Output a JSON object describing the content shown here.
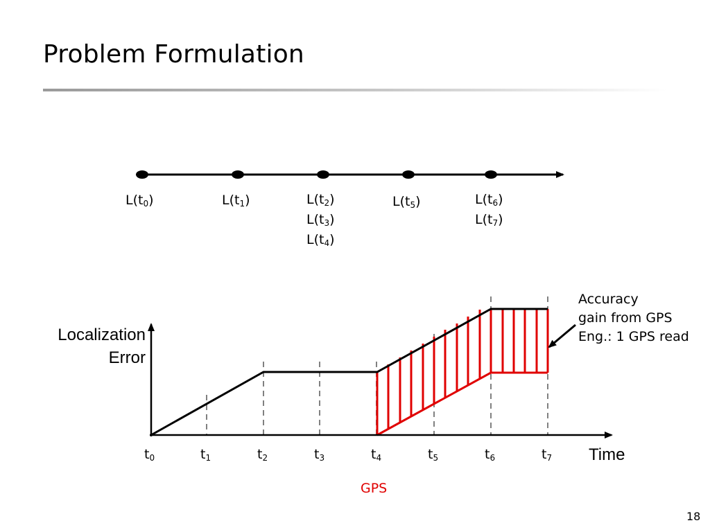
{
  "slide": {
    "title": "Problem Formulation",
    "page_number": "18"
  },
  "timeline": {
    "groups": [
      {
        "labels": [
          {
            "base": "L(t",
            "sub": "0",
            "close": ")"
          }
        ]
      },
      {
        "labels": [
          {
            "base": "L(t",
            "sub": "1",
            "close": ")"
          }
        ]
      },
      {
        "labels": [
          {
            "base": "L(t",
            "sub": "2",
            "close": ")"
          },
          {
            "base": "L(t",
            "sub": "3",
            "close": ")"
          },
          {
            "base": "L(t",
            "sub": "4",
            "close": ")"
          }
        ]
      },
      {
        "labels": [
          {
            "base": "L(t",
            "sub": "5",
            "close": ")"
          }
        ]
      },
      {
        "labels": [
          {
            "base": "L(t",
            "sub": "6",
            "close": ")"
          },
          {
            "base": "L(t",
            "sub": "7",
            "close": ")"
          }
        ]
      }
    ]
  },
  "plot": {
    "y_axis_title_line1": "Localization",
    "y_axis_title_line2": "Error",
    "x_axis_title": "Time",
    "ticks": [
      {
        "base": "t",
        "sub": "0"
      },
      {
        "base": "t",
        "sub": "1"
      },
      {
        "base": "t",
        "sub": "2"
      },
      {
        "base": "t",
        "sub": "3"
      },
      {
        "base": "t",
        "sub": "4"
      },
      {
        "base": "t",
        "sub": "5"
      },
      {
        "base": "t",
        "sub": "6"
      },
      {
        "base": "t",
        "sub": "7"
      }
    ],
    "gps_label": "GPS",
    "callout": {
      "line1": "Accuracy",
      "line2": "gain from GPS",
      "line3": "Eng.: 1 GPS read"
    },
    "colors": {
      "gain_region": "#e00000",
      "error_curve": "#000000",
      "dashed_guides": "#808080"
    }
  }
}
